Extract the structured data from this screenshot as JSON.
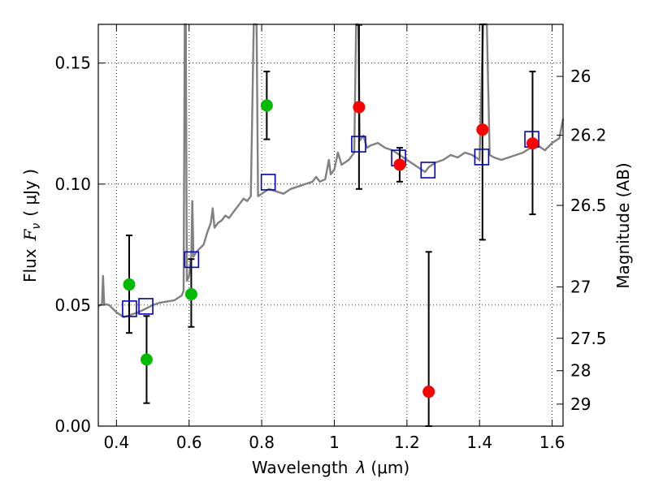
{
  "chart_data": {
    "type": "scatter",
    "title": "",
    "xlabel_text": "Wavelength",
    "xlabel_symbol": "λ",
    "xlabel_unit": "(μm)",
    "ylabel_text": "Flux",
    "ylabel_symbol": "F",
    "ylabel_subscript": "ν",
    "ylabel_unit": "( μJy )",
    "y2label": "Magnitude (AB)",
    "xlim": [
      0.35,
      1.63
    ],
    "ylim": [
      0.0,
      0.166
    ],
    "grid": true,
    "x_ticks": [
      0.4,
      0.6,
      0.8,
      1.0,
      1.2,
      1.4,
      1.6
    ],
    "x_tick_labels": [
      "0.4",
      "0.6",
      "0.8",
      "1",
      "1.2",
      "1.4",
      "1.6"
    ],
    "y_ticks": [
      0.0,
      0.05,
      0.1,
      0.15
    ],
    "y_tick_labels": [
      "0.00",
      "0.05",
      "0.10",
      "0.15"
    ],
    "y2_ticks": [
      {
        "label": "26",
        "flux": 0.1445
      },
      {
        "label": "26.2",
        "flux": 0.1202
      },
      {
        "label": "26.5",
        "flux": 0.0912
      },
      {
        "label": "27",
        "flux": 0.0575
      },
      {
        "label": "27.5",
        "flux": 0.0363
      },
      {
        "label": "28",
        "flux": 0.0229
      },
      {
        "label": "29",
        "flux": 0.0091
      }
    ],
    "colors": {
      "green": "#00bb00",
      "red": "#ff0000",
      "blue": "#0000cc",
      "spectrum": "#808080",
      "errorbar": "#000000"
    },
    "series": [
      {
        "name": "green-points",
        "marker": "circle",
        "color": "#00bb00",
        "points": [
          {
            "x": 0.435,
            "y": 0.0585,
            "err_low": 0.0385,
            "err_high": 0.0788
          },
          {
            "x": 0.483,
            "y": 0.0275,
            "err_low": 0.0095,
            "err_high": 0.0455
          },
          {
            "x": 0.606,
            "y": 0.0545,
            "err_low": 0.041,
            "err_high": 0.069
          },
          {
            "x": 0.814,
            "y": 0.1325,
            "err_low": 0.1185,
            "err_high": 0.1465
          }
        ]
      },
      {
        "name": "red-points",
        "marker": "circle",
        "color": "#ff0000",
        "points": [
          {
            "x": 1.068,
            "y": 0.1318,
            "err_low": 0.098,
            "err_high": 0.1658
          },
          {
            "x": 1.18,
            "y": 0.108,
            "err_low": 0.101,
            "err_high": 0.115
          },
          {
            "x": 1.26,
            "y": 0.0142,
            "err_low": -0.002,
            "err_high": 0.072
          },
          {
            "x": 1.408,
            "y": 0.1225,
            "err_low": 0.077,
            "err_high": 0.168
          },
          {
            "x": 1.546,
            "y": 0.1168,
            "err_low": 0.0875,
            "err_high": 0.1465
          }
        ]
      },
      {
        "name": "blue-squares",
        "marker": "square",
        "color": "#0000cc",
        "points": [
          {
            "x": 0.436,
            "y": 0.0485
          },
          {
            "x": 0.481,
            "y": 0.0495
          },
          {
            "x": 0.607,
            "y": 0.0688
          },
          {
            "x": 0.818,
            "y": 0.1008
          },
          {
            "x": 1.067,
            "y": 0.1165
          },
          {
            "x": 1.177,
            "y": 0.1108
          },
          {
            "x": 1.258,
            "y": 0.1058
          },
          {
            "x": 1.406,
            "y": 0.1112
          },
          {
            "x": 1.544,
            "y": 0.1185
          }
        ]
      }
    ],
    "spectrum": {
      "name": "model-spectrum",
      "color": "#808080",
      "points": [
        [
          0.35,
          0.0495
        ],
        [
          0.36,
          0.0505
        ],
        [
          0.363,
          0.062
        ],
        [
          0.366,
          0.0505
        ],
        [
          0.38,
          0.05
        ],
        [
          0.4,
          0.047
        ],
        [
          0.42,
          0.045
        ],
        [
          0.44,
          0.046
        ],
        [
          0.46,
          0.047
        ],
        [
          0.48,
          0.0485
        ],
        [
          0.5,
          0.05
        ],
        [
          0.52,
          0.051
        ],
        [
          0.54,
          0.0515
        ],
        [
          0.56,
          0.052
        ],
        [
          0.58,
          0.054
        ],
        [
          0.585,
          0.056
        ],
        [
          0.588,
          0.166
        ],
        [
          0.591,
          0.166
        ],
        [
          0.594,
          0.06
        ],
        [
          0.6,
          0.062
        ],
        [
          0.606,
          0.07
        ],
        [
          0.609,
          0.093
        ],
        [
          0.612,
          0.07
        ],
        [
          0.62,
          0.072
        ],
        [
          0.64,
          0.075
        ],
        [
          0.65,
          0.08
        ],
        [
          0.66,
          0.084
        ],
        [
          0.665,
          0.09
        ],
        [
          0.67,
          0.082
        ],
        [
          0.68,
          0.084
        ],
        [
          0.69,
          0.085
        ],
        [
          0.7,
          0.087
        ],
        [
          0.71,
          0.086
        ],
        [
          0.72,
          0.088
        ],
        [
          0.73,
          0.09
        ],
        [
          0.74,
          0.092
        ],
        [
          0.75,
          0.094
        ],
        [
          0.76,
          0.093
        ],
        [
          0.77,
          0.095
        ],
        [
          0.778,
          0.166
        ],
        [
          0.786,
          0.166
        ],
        [
          0.79,
          0.095
        ],
        [
          0.8,
          0.096
        ],
        [
          0.82,
          0.098
        ],
        [
          0.84,
          0.097
        ],
        [
          0.86,
          0.096
        ],
        [
          0.88,
          0.098
        ],
        [
          0.9,
          0.099
        ],
        [
          0.92,
          0.1
        ],
        [
          0.94,
          0.101
        ],
        [
          0.95,
          0.103
        ],
        [
          0.96,
          0.101
        ],
        [
          0.975,
          0.102
        ],
        [
          0.985,
          0.11
        ],
        [
          0.99,
          0.104
        ],
        [
          1.0,
          0.106
        ],
        [
          1.01,
          0.113
        ],
        [
          1.02,
          0.108
        ],
        [
          1.04,
          0.11
        ],
        [
          1.055,
          0.113
        ],
        [
          1.06,
          0.166
        ],
        [
          1.066,
          0.166
        ],
        [
          1.07,
          0.118
        ],
        [
          1.08,
          0.12
        ],
        [
          1.09,
          0.115
        ],
        [
          1.1,
          0.116
        ],
        [
          1.12,
          0.117
        ],
        [
          1.14,
          0.115
        ],
        [
          1.16,
          0.114
        ],
        [
          1.18,
          0.112
        ],
        [
          1.2,
          0.11
        ],
        [
          1.22,
          0.108
        ],
        [
          1.24,
          0.106
        ],
        [
          1.25,
          0.105
        ],
        [
          1.26,
          0.107
        ],
        [
          1.28,
          0.109
        ],
        [
          1.3,
          0.11
        ],
        [
          1.32,
          0.112
        ],
        [
          1.34,
          0.111
        ],
        [
          1.36,
          0.113
        ],
        [
          1.38,
          0.112
        ],
        [
          1.4,
          0.11
        ],
        [
          1.41,
          0.166
        ],
        [
          1.42,
          0.166
        ],
        [
          1.428,
          0.112
        ],
        [
          1.44,
          0.111
        ],
        [
          1.46,
          0.11
        ],
        [
          1.48,
          0.111
        ],
        [
          1.5,
          0.112
        ],
        [
          1.52,
          0.113
        ],
        [
          1.54,
          0.115
        ],
        [
          1.56,
          0.116
        ],
        [
          1.58,
          0.114
        ],
        [
          1.6,
          0.117
        ],
        [
          1.62,
          0.119
        ],
        [
          1.63,
          0.127
        ]
      ]
    }
  }
}
